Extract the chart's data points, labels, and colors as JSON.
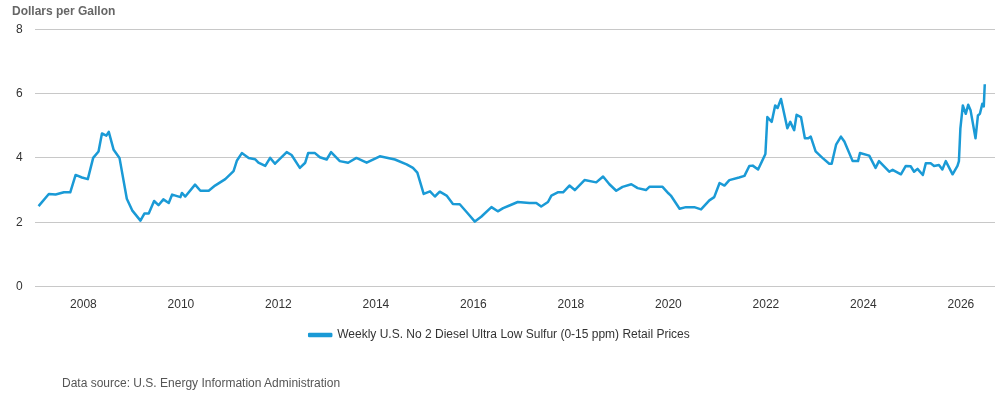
{
  "chart_data": {
    "type": "line",
    "ylabel": "Dollars per Gallon",
    "annotations": [
      "Data source: U.S. Energy Information Administration"
    ],
    "xlim": [
      2007,
      2026.7
    ],
    "xticks": [
      2008,
      2010,
      2012,
      2014,
      2016,
      2018,
      2020,
      2022,
      2024,
      2026
    ],
    "ylim": [
      0,
      8
    ],
    "yticks": [
      0,
      2,
      4,
      6,
      8
    ],
    "grid": "y",
    "legend": "bottom",
    "marker": "none",
    "line_style": "solid",
    "series": [
      {
        "name": "Weekly U.S. No 2 Diesel Ultra Low Sulfur (0-15 ppm) Retail Prices",
        "color": "#1a9ad6",
        "x": [
          2007.08,
          2007.29,
          2007.43,
          2007.6,
          2007.73,
          2007.84,
          2007.97,
          2008.09,
          2008.2,
          2008.31,
          2008.38,
          2008.47,
          2008.52,
          2008.62,
          2008.74,
          2008.89,
          2009.0,
          2009.17,
          2009.25,
          2009.34,
          2009.45,
          2009.54,
          2009.64,
          2009.75,
          2009.82,
          2009.99,
          2010.02,
          2010.09,
          2010.29,
          2010.4,
          2010.57,
          2010.7,
          2010.91,
          2011.08,
          2011.15,
          2011.25,
          2011.39,
          2011.52,
          2011.59,
          2011.73,
          2011.83,
          2011.93,
          2012.17,
          2012.27,
          2012.44,
          2012.55,
          2012.61,
          2012.75,
          2012.85,
          2012.99,
          2013.08,
          2013.26,
          2013.43,
          2013.6,
          2013.81,
          2014.08,
          2014.39,
          2014.63,
          2014.76,
          2014.85,
          2014.98,
          2015.11,
          2015.21,
          2015.31,
          2015.45,
          2015.58,
          2015.72,
          2015.86,
          2016.03,
          2016.16,
          2016.37,
          2016.5,
          2016.61,
          2016.74,
          2016.91,
          2017.15,
          2017.29,
          2017.39,
          2017.53,
          2017.6,
          2017.73,
          2017.84,
          2017.97,
          2018.08,
          2018.28,
          2018.52,
          2018.66,
          2018.79,
          2018.93,
          2019.06,
          2019.24,
          2019.37,
          2019.54,
          2019.61,
          2019.88,
          2020.0,
          2020.05,
          2020.23,
          2020.36,
          2020.53,
          2020.67,
          2020.84,
          2020.94,
          2021.05,
          2021.15,
          2021.25,
          2021.45,
          2021.56,
          2021.66,
          2021.73,
          2021.84,
          2021.99,
          2022.03,
          2022.12,
          2022.19,
          2022.24,
          2022.31,
          2022.44,
          2022.5,
          2022.58,
          2022.63,
          2022.72,
          2022.8,
          2022.87,
          2022.92,
          2023.02,
          2023.16,
          2023.3,
          2023.35,
          2023.44,
          2023.54,
          2023.61,
          2023.78,
          2023.89,
          2023.93,
          2024.12,
          2024.25,
          2024.32,
          2024.53,
          2024.6,
          2024.77,
          2024.87,
          2024.97,
          2025.04,
          2025.11,
          2025.22,
          2025.28,
          2025.38,
          2025.45,
          2025.55,
          2025.62,
          2025.69,
          2025.83,
          2025.93,
          2025.96,
          2025.99,
          2026.04,
          2026.1,
          2026.15,
          2026.2,
          2026.3,
          2026.35,
          2026.39,
          2026.44,
          2026.47,
          2026.49
        ],
        "values": [
          2.5,
          2.88,
          2.86,
          2.93,
          2.93,
          3.47,
          3.39,
          3.34,
          4.0,
          4.2,
          4.76,
          4.69,
          4.81,
          4.25,
          4.0,
          2.73,
          2.37,
          2.05,
          2.27,
          2.27,
          2.66,
          2.53,
          2.71,
          2.6,
          2.86,
          2.78,
          2.91,
          2.8,
          3.17,
          2.98,
          2.98,
          3.14,
          3.34,
          3.59,
          3.92,
          4.15,
          4.0,
          3.96,
          3.85,
          3.75,
          4.0,
          3.82,
          4.18,
          4.09,
          3.69,
          3.85,
          4.15,
          4.15,
          4.02,
          3.95,
          4.18,
          3.9,
          3.85,
          4.0,
          3.85,
          4.05,
          3.95,
          3.8,
          3.69,
          3.54,
          2.88,
          2.96,
          2.8,
          2.95,
          2.83,
          2.57,
          2.56,
          2.32,
          2.02,
          2.17,
          2.47,
          2.34,
          2.44,
          2.52,
          2.63,
          2.6,
          2.6,
          2.49,
          2.63,
          2.83,
          2.93,
          2.93,
          3.14,
          3.0,
          3.31,
          3.24,
          3.42,
          3.18,
          2.98,
          3.1,
          3.18,
          3.06,
          3.0,
          3.1,
          3.1,
          2.9,
          2.83,
          2.42,
          2.47,
          2.47,
          2.4,
          2.68,
          2.78,
          3.22,
          3.14,
          3.31,
          3.39,
          3.44,
          3.75,
          3.76,
          3.64,
          4.12,
          5.27,
          5.12,
          5.63,
          5.55,
          5.83,
          4.92,
          5.12,
          4.86,
          5.34,
          5.27,
          4.61,
          4.61,
          4.66,
          4.2,
          4.0,
          3.82,
          3.82,
          4.41,
          4.66,
          4.51,
          3.9,
          3.9,
          4.15,
          4.07,
          3.69,
          3.9,
          3.57,
          3.63,
          3.49,
          3.75,
          3.74,
          3.57,
          3.66,
          3.47,
          3.83,
          3.83,
          3.75,
          3.78,
          3.64,
          3.9,
          3.49,
          3.75,
          3.9,
          4.92,
          5.63,
          5.37,
          5.65,
          5.47,
          4.61,
          5.32,
          5.37,
          5.68,
          5.6,
          6.29
        ]
      }
    ]
  }
}
